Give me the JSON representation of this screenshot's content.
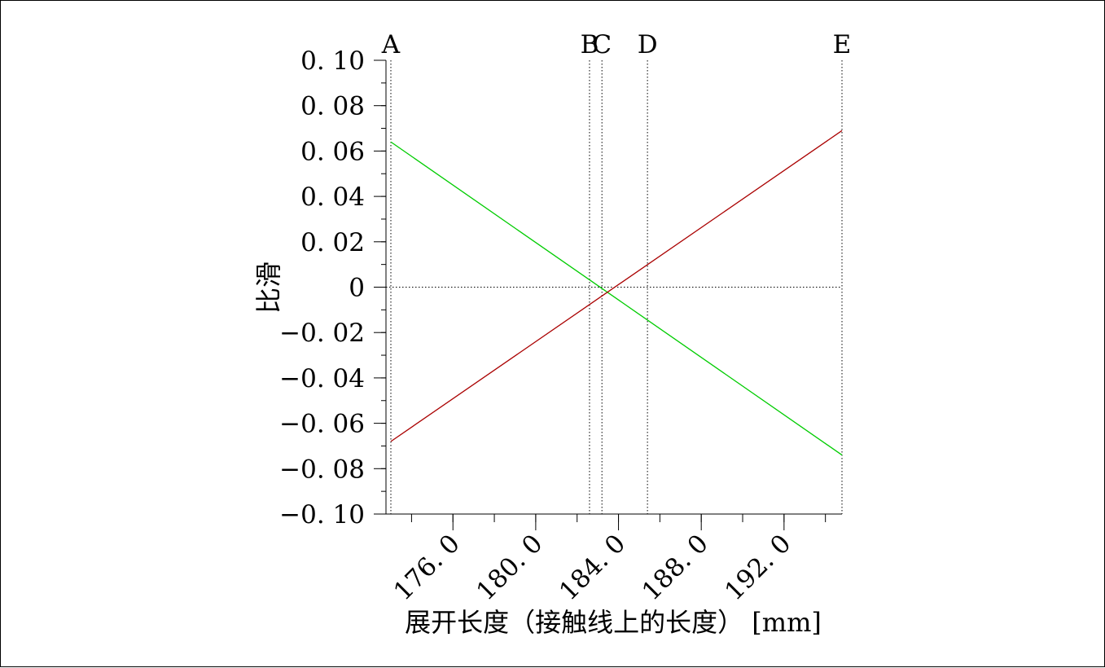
{
  "chart_data": {
    "type": "line",
    "xlabel": "展开长度（接触线上的长度） [mm]",
    "ylabel": "比滑",
    "xlim": [
      173.0,
      194.8
    ],
    "ylim": [
      -0.1,
      0.1
    ],
    "x_ticks": [
      176.0,
      180.0,
      184.0,
      188.0,
      192.0
    ],
    "x_tick_labels": [
      "176. 0",
      "180. 0",
      "184. 0",
      "188. 0",
      "192. 0"
    ],
    "y_ticks": [
      0.1,
      0.08,
      0.06,
      0.04,
      0.02,
      0,
      -0.02,
      -0.04,
      -0.06,
      -0.08,
      -0.1
    ],
    "y_tick_labels": [
      "0. 10",
      "0. 08",
      "0. 06",
      "0. 04",
      "0. 02",
      "0",
      "−0. 02",
      "−0. 04",
      "−0. 06",
      "−0. 08",
      "−0. 10"
    ],
    "markers": [
      {
        "label": "A",
        "x": 173.0
      },
      {
        "label": "B",
        "x": 182.6
      },
      {
        "label": "C",
        "x": 183.2
      },
      {
        "label": "D",
        "x": 185.4
      },
      {
        "label": "E",
        "x": 194.8
      }
    ],
    "series": [
      {
        "color": "#00cc00",
        "x": [
          173.0,
          194.8
        ],
        "y": [
          0.064,
          -0.074
        ]
      },
      {
        "color": "#aa0000",
        "x": [
          173.0,
          194.8
        ],
        "y": [
          -0.068,
          0.069
        ]
      }
    ],
    "zero_line": true,
    "grid": false
  }
}
